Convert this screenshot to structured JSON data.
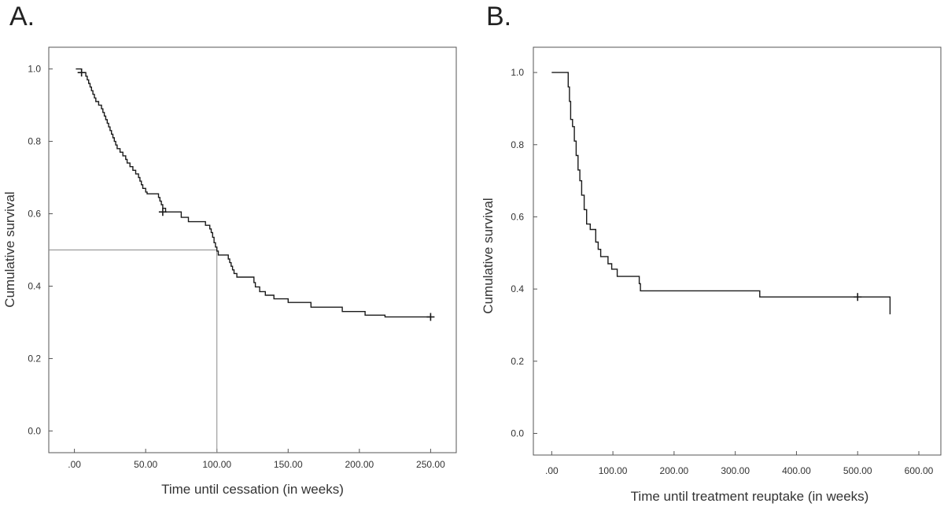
{
  "chart_data": [
    {
      "panel": "A.",
      "type": "line",
      "subtype": "kaplan-meier",
      "title": "",
      "xlabel": "Time until cessation (in weeks)",
      "ylabel": "Cumulative survival",
      "xlim": [
        -18,
        268
      ],
      "ylim": [
        -0.06,
        1.06
      ],
      "xticks": [
        0,
        50,
        100,
        150,
        200,
        250
      ],
      "xtick_labels": [
        ".00",
        "50.00",
        "100.00",
        "150.00",
        "200.00",
        "250.00"
      ],
      "yticks": [
        0,
        0.2,
        0.4,
        0.6,
        0.8,
        1.0
      ],
      "ytick_labels": [
        "0.0",
        "0.2",
        "0.4",
        "0.6",
        "0.8",
        "1.0"
      ],
      "grid": false,
      "series": [
        {
          "name": "survival",
          "steps": [
            [
              1,
              1.0
            ],
            [
              5,
              0.99
            ],
            [
              8,
              0.98
            ],
            [
              9,
              0.97
            ],
            [
              10,
              0.96
            ],
            [
              11,
              0.95
            ],
            [
              12,
              0.94
            ],
            [
              13,
              0.93
            ],
            [
              14,
              0.92
            ],
            [
              15,
              0.91
            ],
            [
              17,
              0.9
            ],
            [
              19,
              0.89
            ],
            [
              20,
              0.88
            ],
            [
              21,
              0.87
            ],
            [
              22,
              0.86
            ],
            [
              23,
              0.85
            ],
            [
              24,
              0.84
            ],
            [
              25,
              0.83
            ],
            [
              26,
              0.82
            ],
            [
              27,
              0.81
            ],
            [
              28,
              0.8
            ],
            [
              29,
              0.79
            ],
            [
              30,
              0.78
            ],
            [
              32,
              0.77
            ],
            [
              34,
              0.76
            ],
            [
              36,
              0.75
            ],
            [
              37,
              0.74
            ],
            [
              39,
              0.73
            ],
            [
              41,
              0.72
            ],
            [
              43,
              0.71
            ],
            [
              45,
              0.7
            ],
            [
              46,
              0.69
            ],
            [
              47,
              0.68
            ],
            [
              48,
              0.67
            ],
            [
              50,
              0.66
            ],
            [
              51,
              0.655
            ],
            [
              59,
              0.645
            ],
            [
              60,
              0.635
            ],
            [
              61,
              0.625
            ],
            [
              62,
              0.615
            ],
            [
              64,
              0.605
            ],
            [
              75,
              0.59
            ],
            [
              80,
              0.578
            ],
            [
              92,
              0.568
            ],
            [
              95,
              0.558
            ],
            [
              96,
              0.548
            ],
            [
              97,
              0.535
            ],
            [
              98,
              0.52
            ],
            [
              99,
              0.508
            ],
            [
              100,
              0.497
            ],
            [
              101,
              0.486
            ],
            [
              108,
              0.475
            ],
            [
              109,
              0.465
            ],
            [
              110,
              0.455
            ],
            [
              111,
              0.445
            ],
            [
              112,
              0.435
            ],
            [
              114,
              0.425
            ],
            [
              126,
              0.41
            ],
            [
              127,
              0.398
            ],
            [
              130,
              0.385
            ],
            [
              134,
              0.375
            ],
            [
              140,
              0.365
            ],
            [
              150,
              0.355
            ],
            [
              166,
              0.342
            ],
            [
              188,
              0.33
            ],
            [
              204,
              0.32
            ],
            [
              218,
              0.315
            ],
            [
              250,
              0.315
            ]
          ],
          "censored": [
            [
              5,
              0.99
            ],
            [
              62,
              0.605
            ],
            [
              250,
              0.315
            ]
          ]
        }
      ],
      "reference_lines": {
        "median_time": 100,
        "survival_level": 0.5
      }
    },
    {
      "panel": "B.",
      "type": "line",
      "subtype": "kaplan-meier",
      "title": "",
      "xlabel": "Time until treatment reuptake (in weeks)",
      "ylabel": "Cumulative survival",
      "xlim": [
        -30,
        636
      ],
      "ylim": [
        -0.06,
        1.07
      ],
      "xticks": [
        0,
        100,
        200,
        300,
        400,
        500,
        600
      ],
      "xtick_labels": [
        ".00",
        "100.00",
        "200.00",
        "300.00",
        "400.00",
        "500.00",
        "600.00"
      ],
      "yticks": [
        0,
        0.2,
        0.4,
        0.6,
        0.8,
        1.0
      ],
      "ytick_labels": [
        "0.0",
        "0.2",
        "0.4",
        "0.6",
        "0.8",
        "1.0"
      ],
      "grid": false,
      "series": [
        {
          "name": "survival",
          "steps": [
            [
              0,
              1.0
            ],
            [
              26,
              1.0
            ],
            [
              27,
              0.96
            ],
            [
              29,
              0.92
            ],
            [
              31,
              0.87
            ],
            [
              34,
              0.85
            ],
            [
              37,
              0.81
            ],
            [
              40,
              0.77
            ],
            [
              43,
              0.73
            ],
            [
              46,
              0.7
            ],
            [
              49,
              0.66
            ],
            [
              53,
              0.62
            ],
            [
              57,
              0.58
            ],
            [
              63,
              0.565
            ],
            [
              72,
              0.53
            ],
            [
              76,
              0.51
            ],
            [
              80,
              0.49
            ],
            [
              92,
              0.47
            ],
            [
              98,
              0.455
            ],
            [
              107,
              0.435
            ],
            [
              143,
              0.415
            ],
            [
              145,
              0.395
            ],
            [
              340,
              0.378
            ],
            [
              500,
              0.378
            ],
            [
              553,
              0.378
            ],
            [
              553,
              0.33
            ]
          ],
          "censored": [
            [
              500,
              0.378
            ]
          ]
        }
      ]
    }
  ],
  "panel_labels": {
    "a": "A.",
    "b": "B."
  }
}
